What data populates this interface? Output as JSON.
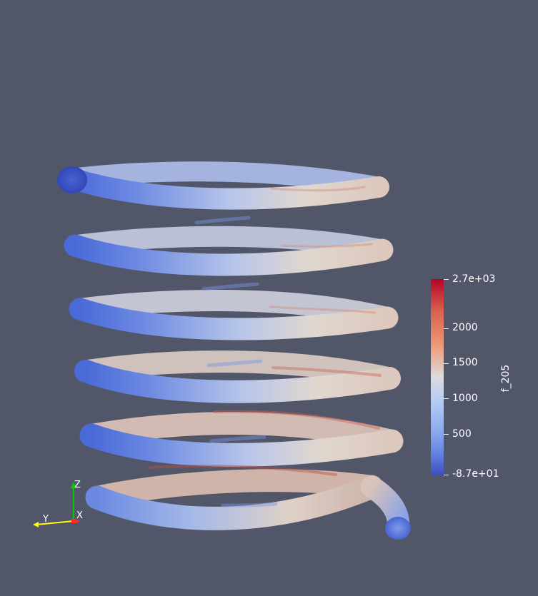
{
  "colorbar": {
    "title": "f_205",
    "ticks": [
      "2.7e+03",
      "2000",
      "1500",
      "1000",
      "500",
      "-8.7e+01"
    ]
  },
  "axes": {
    "z_label": "Z",
    "y_label": "Y",
    "x_label": "X"
  },
  "colors": {
    "background": "#525669",
    "low": "#3b4cc0",
    "mid": "#dcdcdc",
    "high": "#b40426",
    "axis_x": "#ff2a2a",
    "axis_y": "#ffff00",
    "axis_z": "#00d000"
  }
}
